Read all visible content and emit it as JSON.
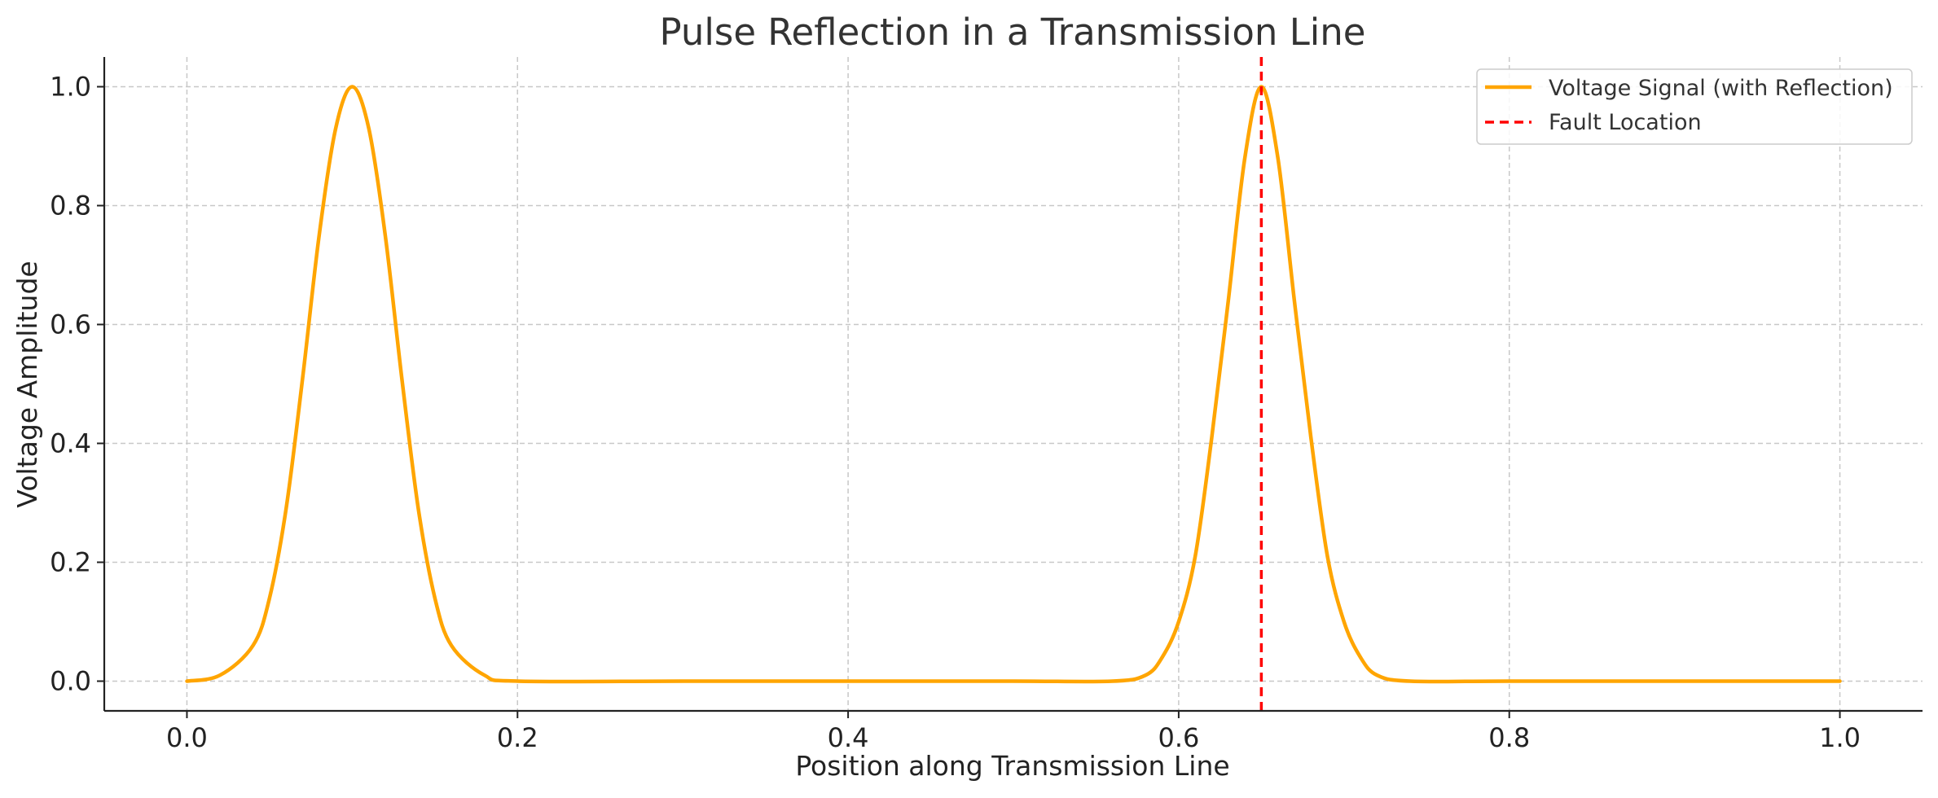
{
  "chart_data": {
    "type": "line",
    "title": "Pulse Reflection in a Transmission Line",
    "xlabel": "Position along Transmission Line",
    "ylabel": "Voltage Amplitude",
    "xlim": [
      -0.05,
      1.05
    ],
    "ylim": [
      -0.05,
      1.05
    ],
    "xticks": [
      0.0,
      0.2,
      0.4,
      0.6,
      0.8,
      1.0
    ],
    "xtick_labels": [
      "0.0",
      "0.2",
      "0.4",
      "0.6",
      "0.8",
      "1.0"
    ],
    "yticks": [
      0.0,
      0.2,
      0.4,
      0.6,
      0.8,
      1.0
    ],
    "ytick_labels": [
      "0.0",
      "0.2",
      "0.4",
      "0.6",
      "0.8",
      "1.0"
    ],
    "grid": true,
    "legend_position": "top-right",
    "series": [
      {
        "name": "Voltage Signal (with Reflection)",
        "color": "#FFA500",
        "style": "solid",
        "x": [
          0.0,
          0.02,
          0.04,
          0.05,
          0.06,
          0.07,
          0.08,
          0.09,
          0.1,
          0.11,
          0.12,
          0.13,
          0.14,
          0.15,
          0.16,
          0.18,
          0.2,
          0.3,
          0.4,
          0.5,
          0.56,
          0.58,
          0.59,
          0.6,
          0.61,
          0.62,
          0.63,
          0.64,
          0.65,
          0.66,
          0.67,
          0.68,
          0.69,
          0.7,
          0.71,
          0.72,
          0.74,
          0.8,
          0.9,
          1.0
        ],
        "y": [
          0.0,
          0.01,
          0.06,
          0.14,
          0.29,
          0.51,
          0.75,
          0.93,
          1.0,
          0.93,
          0.75,
          0.51,
          0.29,
          0.14,
          0.06,
          0.01,
          0.0,
          0.0,
          0.0,
          0.0,
          0.0,
          0.01,
          0.04,
          0.1,
          0.21,
          0.41,
          0.64,
          0.88,
          1.0,
          0.88,
          0.64,
          0.41,
          0.21,
          0.1,
          0.04,
          0.01,
          0.0,
          0.0,
          0.0,
          0.0
        ]
      },
      {
        "name": "Fault Location",
        "color": "#FF0000",
        "style": "dashed",
        "x_vertical": 0.65
      }
    ]
  }
}
